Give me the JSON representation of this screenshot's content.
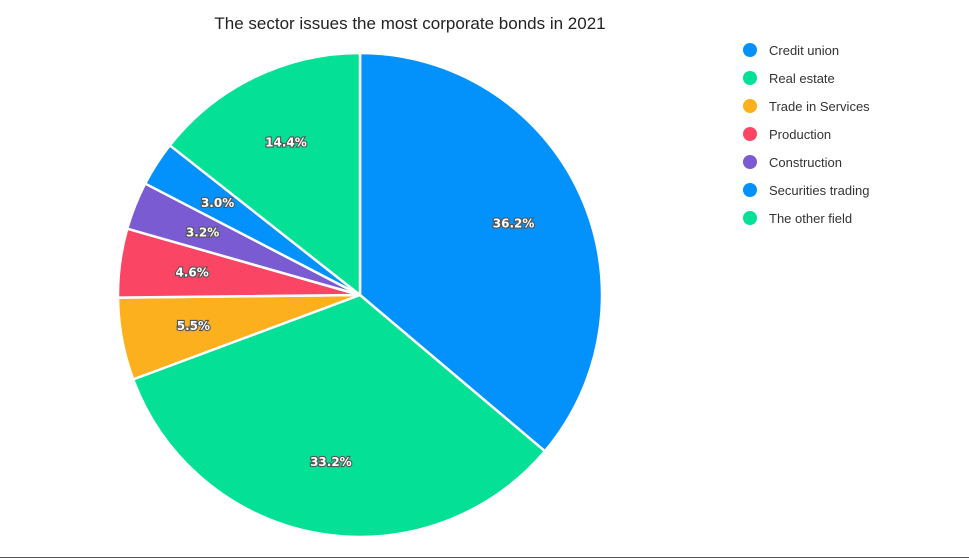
{
  "chart_data": {
    "type": "pie",
    "title": "The sector issues the most corporate bonds in 2021",
    "legend_position": "top-right",
    "slices": [
      {
        "name": "Credit union",
        "value": 36.2,
        "label": "36.2%",
        "color": "#0391fc"
      },
      {
        "name": "Real estate",
        "value": 33.2,
        "label": "33.2%",
        "color": "#04e096"
      },
      {
        "name": "Trade in Services",
        "value": 5.5,
        "label": "5.5%",
        "color": "#fdb01d"
      },
      {
        "name": "Production",
        "value": 4.6,
        "label": "4.6%",
        "color": "#fb4565"
      },
      {
        "name": "Construction",
        "value": 3.2,
        "label": "3.2%",
        "color": "#7a5bd2"
      },
      {
        "name": "Securities trading",
        "value": 3.0,
        "label": "3.0%",
        "color": "#0391fc"
      },
      {
        "name": "The other field",
        "value": 14.4,
        "label": "14.4%",
        "color": "#04e096"
      }
    ]
  }
}
